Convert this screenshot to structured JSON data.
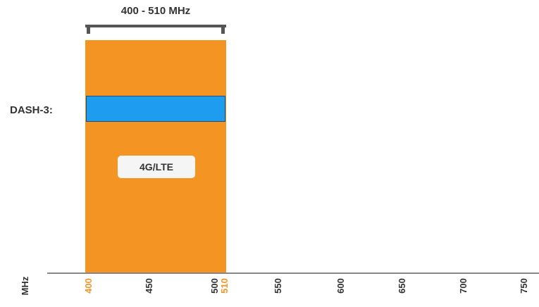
{
  "range_label": "400 - 510 MHz",
  "device_label": "DASH-3:",
  "technology_label": "4G/LTE",
  "axis_unit": "MHz",
  "ticks": [
    {
      "label": "400",
      "highlight": true
    },
    {
      "label": "450",
      "highlight": false
    },
    {
      "label": "500",
      "highlight": false
    },
    {
      "label": "510",
      "highlight": true
    },
    {
      "label": "550",
      "highlight": false
    },
    {
      "label": "600",
      "highlight": false
    },
    {
      "label": "650",
      "highlight": false
    },
    {
      "label": "700",
      "highlight": false
    },
    {
      "label": "750",
      "highlight": false
    }
  ],
  "colors": {
    "band": "#f39423",
    "device_bar": "#1e9cf0",
    "tick_text": "#333333",
    "tick_highlight": "#f39423"
  }
}
